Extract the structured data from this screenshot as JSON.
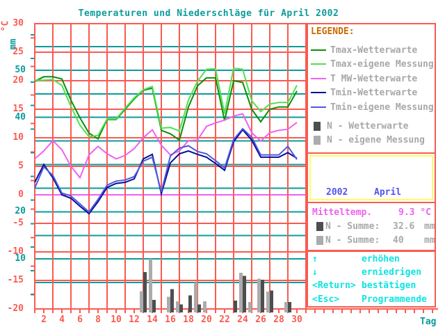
{
  "title": "Temperaturen und Niederschläge für April 2002",
  "colors": {
    "grid_red": "#fa5a50",
    "teal": "#0b9b9b",
    "magenta": "#f060f0",
    "cyan_keys": "#0fe3e3",
    "orange_heading": "#c96a00",
    "gray_text": "#a8a8a8",
    "period_blue": "#5253ef",
    "yellow_border": "#fdfd60",
    "background": "#ffffff"
  },
  "legend": {
    "heading": "LEGENDE:"
  },
  "period_box": {
    "year": "2002",
    "month": "April"
  },
  "summary": {
    "mean_label": "Mitteltemp.",
    "mean_value": "9.3 °C",
    "precip_rows": [
      {
        "label": "N - Summe:",
        "value": "32.6",
        "unit": "mm"
      },
      {
        "label": "N - Summe:",
        "value": "40",
        "unit": "mm"
      }
    ]
  },
  "keys": [
    {
      "key": "↑",
      "action": "erhöhen"
    },
    {
      "key": "↓",
      "action": "erniedrigen"
    },
    {
      "key": "<Return>",
      "action": "bestätigen"
    },
    {
      "key": "<Esc>",
      "action": "Programmende"
    }
  ],
  "chart_data": {
    "type": "line+bar",
    "x_axis": {
      "title": "Tag",
      "range": [
        1,
        31
      ],
      "tick_labels": [
        2,
        4,
        6,
        8,
        10,
        12,
        14,
        16,
        18,
        20,
        22,
        24,
        26,
        28,
        30
      ]
    },
    "temp_axis": {
      "unit": "°C",
      "min": -20,
      "max": 30,
      "gridline_step": 5,
      "labels": [
        30,
        25,
        20,
        15,
        10,
        5,
        0,
        -5,
        -10,
        -15,
        -20
      ],
      "zero_line_color": "#f060f0"
    },
    "precip_axis": {
      "unit": "mm",
      "min": 0,
      "max": 60,
      "gridline_step": 5,
      "labels": [
        50,
        40,
        20,
        10
      ]
    },
    "grid": {
      "vertical_lines_days": [
        3,
        5,
        7,
        9,
        11,
        13,
        15,
        17,
        19,
        21,
        23,
        25,
        27,
        29
      ],
      "horizontal_red_step_c": 5,
      "horizontal_teal_step_mm": 5
    },
    "series": [
      {
        "name": "Tmax-Wetterwarte",
        "color": "#0a8f0a",
        "unit": "°C",
        "values": [
          19.9,
          20.7,
          20.7,
          20.3,
          16.6,
          13.5,
          10.8,
          9.8,
          13.2,
          13.2,
          15.0,
          16.8,
          18.3,
          18.7,
          11.3,
          10.7,
          9.6,
          15.4,
          19.1,
          20.5,
          20.5,
          13.0,
          20.0,
          19.7,
          15.0,
          12.8,
          15.0,
          15.4,
          15.4,
          18.2
        ]
      },
      {
        "name": "Tmax-eigene Messung",
        "color": "#50e050",
        "unit": "°C",
        "values": [
          20.1,
          20.1,
          20.2,
          19.2,
          15.5,
          12.2,
          10.2,
          10.4,
          13.3,
          13.3,
          15.2,
          17.0,
          18.4,
          19.0,
          11.7,
          11.8,
          11.2,
          16.6,
          19.9,
          22.0,
          22.1,
          14.2,
          22.2,
          22.0,
          16.5,
          14.6,
          15.9,
          16.2,
          16.2,
          19.2
        ]
      },
      {
        "name": "T MW-Wetterwarte",
        "color": "#f060f0",
        "unit": "°C",
        "values": [
          6.3,
          7.7,
          9.5,
          7.9,
          5.0,
          3.0,
          7.0,
          8.5,
          7.2,
          6.3,
          6.9,
          8.1,
          10.0,
          11.4,
          8.7,
          7.0,
          7.7,
          9.5,
          9.6,
          12.0,
          12.6,
          13.1,
          13.8,
          14.2,
          10.9,
          9.4,
          10.9,
          11.3,
          11.5,
          12.7
        ]
      },
      {
        "name": "Tmin-Wetterwarte",
        "color": "#000f96",
        "unit": "°C",
        "values": [
          2.2,
          5.3,
          3.0,
          0.0,
          -0.6,
          -2.0,
          -3.3,
          -1.2,
          1.3,
          2.0,
          2.2,
          2.8,
          6.3,
          7.1,
          0.2,
          5.6,
          7.2,
          7.7,
          7.1,
          6.6,
          5.5,
          4.3,
          9.3,
          11.4,
          9.6,
          6.6,
          6.6,
          6.6,
          7.4,
          6.4
        ]
      },
      {
        "name": "Tmin-eigene Messung",
        "color": "#5058dc",
        "unit": "°C",
        "values": [
          1.2,
          4.9,
          3.4,
          0.3,
          -0.2,
          -1.6,
          -3.0,
          -0.8,
          1.7,
          2.4,
          2.6,
          3.2,
          5.9,
          6.6,
          0.5,
          6.8,
          8.2,
          8.6,
          7.6,
          7.2,
          6.0,
          4.7,
          9.7,
          11.6,
          10.1,
          7.0,
          7.0,
          7.0,
          8.5,
          6.2
        ]
      }
    ],
    "bars": [
      {
        "name": "N - Wetterwarte",
        "color": "#4e4e4e",
        "unit": "mm",
        "sum": 32.6,
        "values": [
          0,
          0,
          0,
          0,
          0,
          0,
          0,
          0,
          0,
          0,
          0,
          0,
          7.2,
          1.3,
          0,
          3.6,
          0.4,
          2.3,
          0.4,
          0,
          0,
          0,
          1.2,
          6.4,
          0,
          5.6,
          3.3,
          0,
          0.9,
          0
        ]
      },
      {
        "name": "N - eigene Messung",
        "color": "#acacac",
        "unit": "mm",
        "sum": 40,
        "values": [
          0,
          0,
          0,
          0,
          0,
          0,
          0,
          0,
          0,
          0,
          0,
          0,
          3.2,
          10,
          0,
          2,
          1,
          0,
          5,
          1,
          0,
          0,
          0,
          7.1,
          0.9,
          5.8,
          3.1,
          0,
          0.9,
          0
        ]
      }
    ]
  }
}
